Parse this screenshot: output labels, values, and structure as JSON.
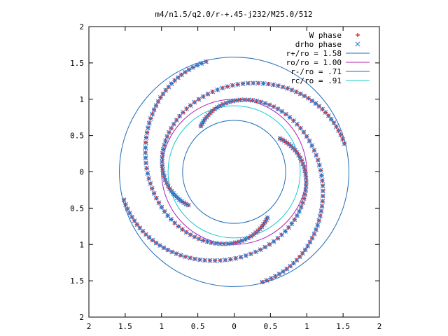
{
  "chart_data": {
    "type": "scatter",
    "title": "m4/n1.5/q2.0/r-+.45-j232/M25.0/512",
    "xlabel": "",
    "ylabel": "",
    "xlim": [
      -2,
      2
    ],
    "ylim": [
      -2,
      2
    ],
    "grid": false,
    "legend_position": "top-right",
    "x_tick_labels": [
      "2",
      "1.5",
      "1",
      "0.5",
      "0",
      "0.5",
      "1",
      "1.5",
      "2"
    ],
    "y_tick_labels": [
      "2",
      "1.5",
      "1",
      "0.5",
      "0",
      "0.5",
      "1",
      "1.5",
      "2"
    ],
    "circles": [
      {
        "label": "r+/ro = 1.58",
        "radius": 1.58,
        "color": "#1e6bb8"
      },
      {
        "label": "ro/ro = 1.00",
        "radius": 1.0,
        "color": "#b020b0"
      },
      {
        "label": "r-/ro = .71",
        "radius": 0.71,
        "color": "#1e6bb8"
      },
      {
        "label": "rc/ro = .91",
        "radius": 0.91,
        "color": "#18c8d0"
      }
    ],
    "series": [
      {
        "label": "W phase",
        "marker": "+",
        "color": "#e01010"
      },
      {
        "label": "drho phase",
        "marker": "x",
        "color": "#2a86e0"
      }
    ],
    "spirals": [
      {
        "rotation_deg": 0
      },
      {
        "rotation_deg": 90
      },
      {
        "rotation_deg": 180
      },
      {
        "rotation_deg": 270
      }
    ]
  }
}
